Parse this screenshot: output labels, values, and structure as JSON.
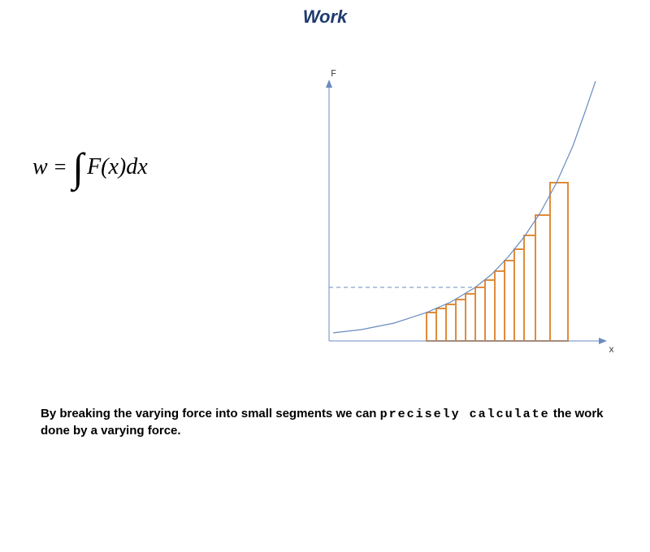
{
  "title": {
    "text": "Work",
    "color": "#1f3a6e",
    "fontsize": 22
  },
  "formula": {
    "text": "w = ∫ F(x) dx",
    "w": "w",
    "eq": "=",
    "integral": "∫",
    "Fxdx": "F(x)dx",
    "color": "#000000"
  },
  "chart": {
    "type": "riemann-under-curve",
    "y_label": "F",
    "x_label": "x",
    "label_fontsize": 12,
    "label_color": "#404040",
    "background_color": "#ffffff",
    "axis_color": "#6a8bbf",
    "axis_width": 1,
    "curve_color": "#6a8bbf",
    "curve_width": 1.2,
    "dashed_line_color": "#6a8bbf",
    "dashed_y": 66,
    "bar_fill": "#ffffff",
    "bar_stroke": "#e08b3a",
    "bar_stroke_width": 2,
    "xlim": [
      0,
      340
    ],
    "ylim": [
      0,
      320
    ],
    "curve": [
      [
        5,
        10
      ],
      [
        40,
        14
      ],
      [
        80,
        22
      ],
      [
        120,
        35
      ],
      [
        150,
        48
      ],
      [
        180,
        66
      ],
      [
        200,
        82
      ],
      [
        220,
        103
      ],
      [
        240,
        128
      ],
      [
        260,
        158
      ],
      [
        280,
        195
      ],
      [
        300,
        240
      ],
      [
        315,
        282
      ],
      [
        328,
        320
      ]
    ],
    "bars": [
      {
        "x": 120,
        "w": 12,
        "h": 35
      },
      {
        "x": 132,
        "w": 12,
        "h": 40
      },
      {
        "x": 144,
        "w": 12,
        "h": 45
      },
      {
        "x": 156,
        "w": 12,
        "h": 51
      },
      {
        "x": 168,
        "w": 12,
        "h": 58
      },
      {
        "x": 180,
        "w": 12,
        "h": 66
      },
      {
        "x": 192,
        "w": 12,
        "h": 75
      },
      {
        "x": 204,
        "w": 12,
        "h": 86
      },
      {
        "x": 216,
        "w": 12,
        "h": 99
      },
      {
        "x": 228,
        "w": 12,
        "h": 113
      },
      {
        "x": 240,
        "w": 14,
        "h": 130
      },
      {
        "x": 254,
        "w": 18,
        "h": 155
      },
      {
        "x": 272,
        "w": 22,
        "h": 195
      }
    ]
  },
  "caption": {
    "part1": "By breaking the varying force into small segments we can  ",
    "part2_spaced": "precisely calculate",
    "part3": " the work done by a varying force.",
    "fontsize": 15,
    "color": "#000000"
  }
}
